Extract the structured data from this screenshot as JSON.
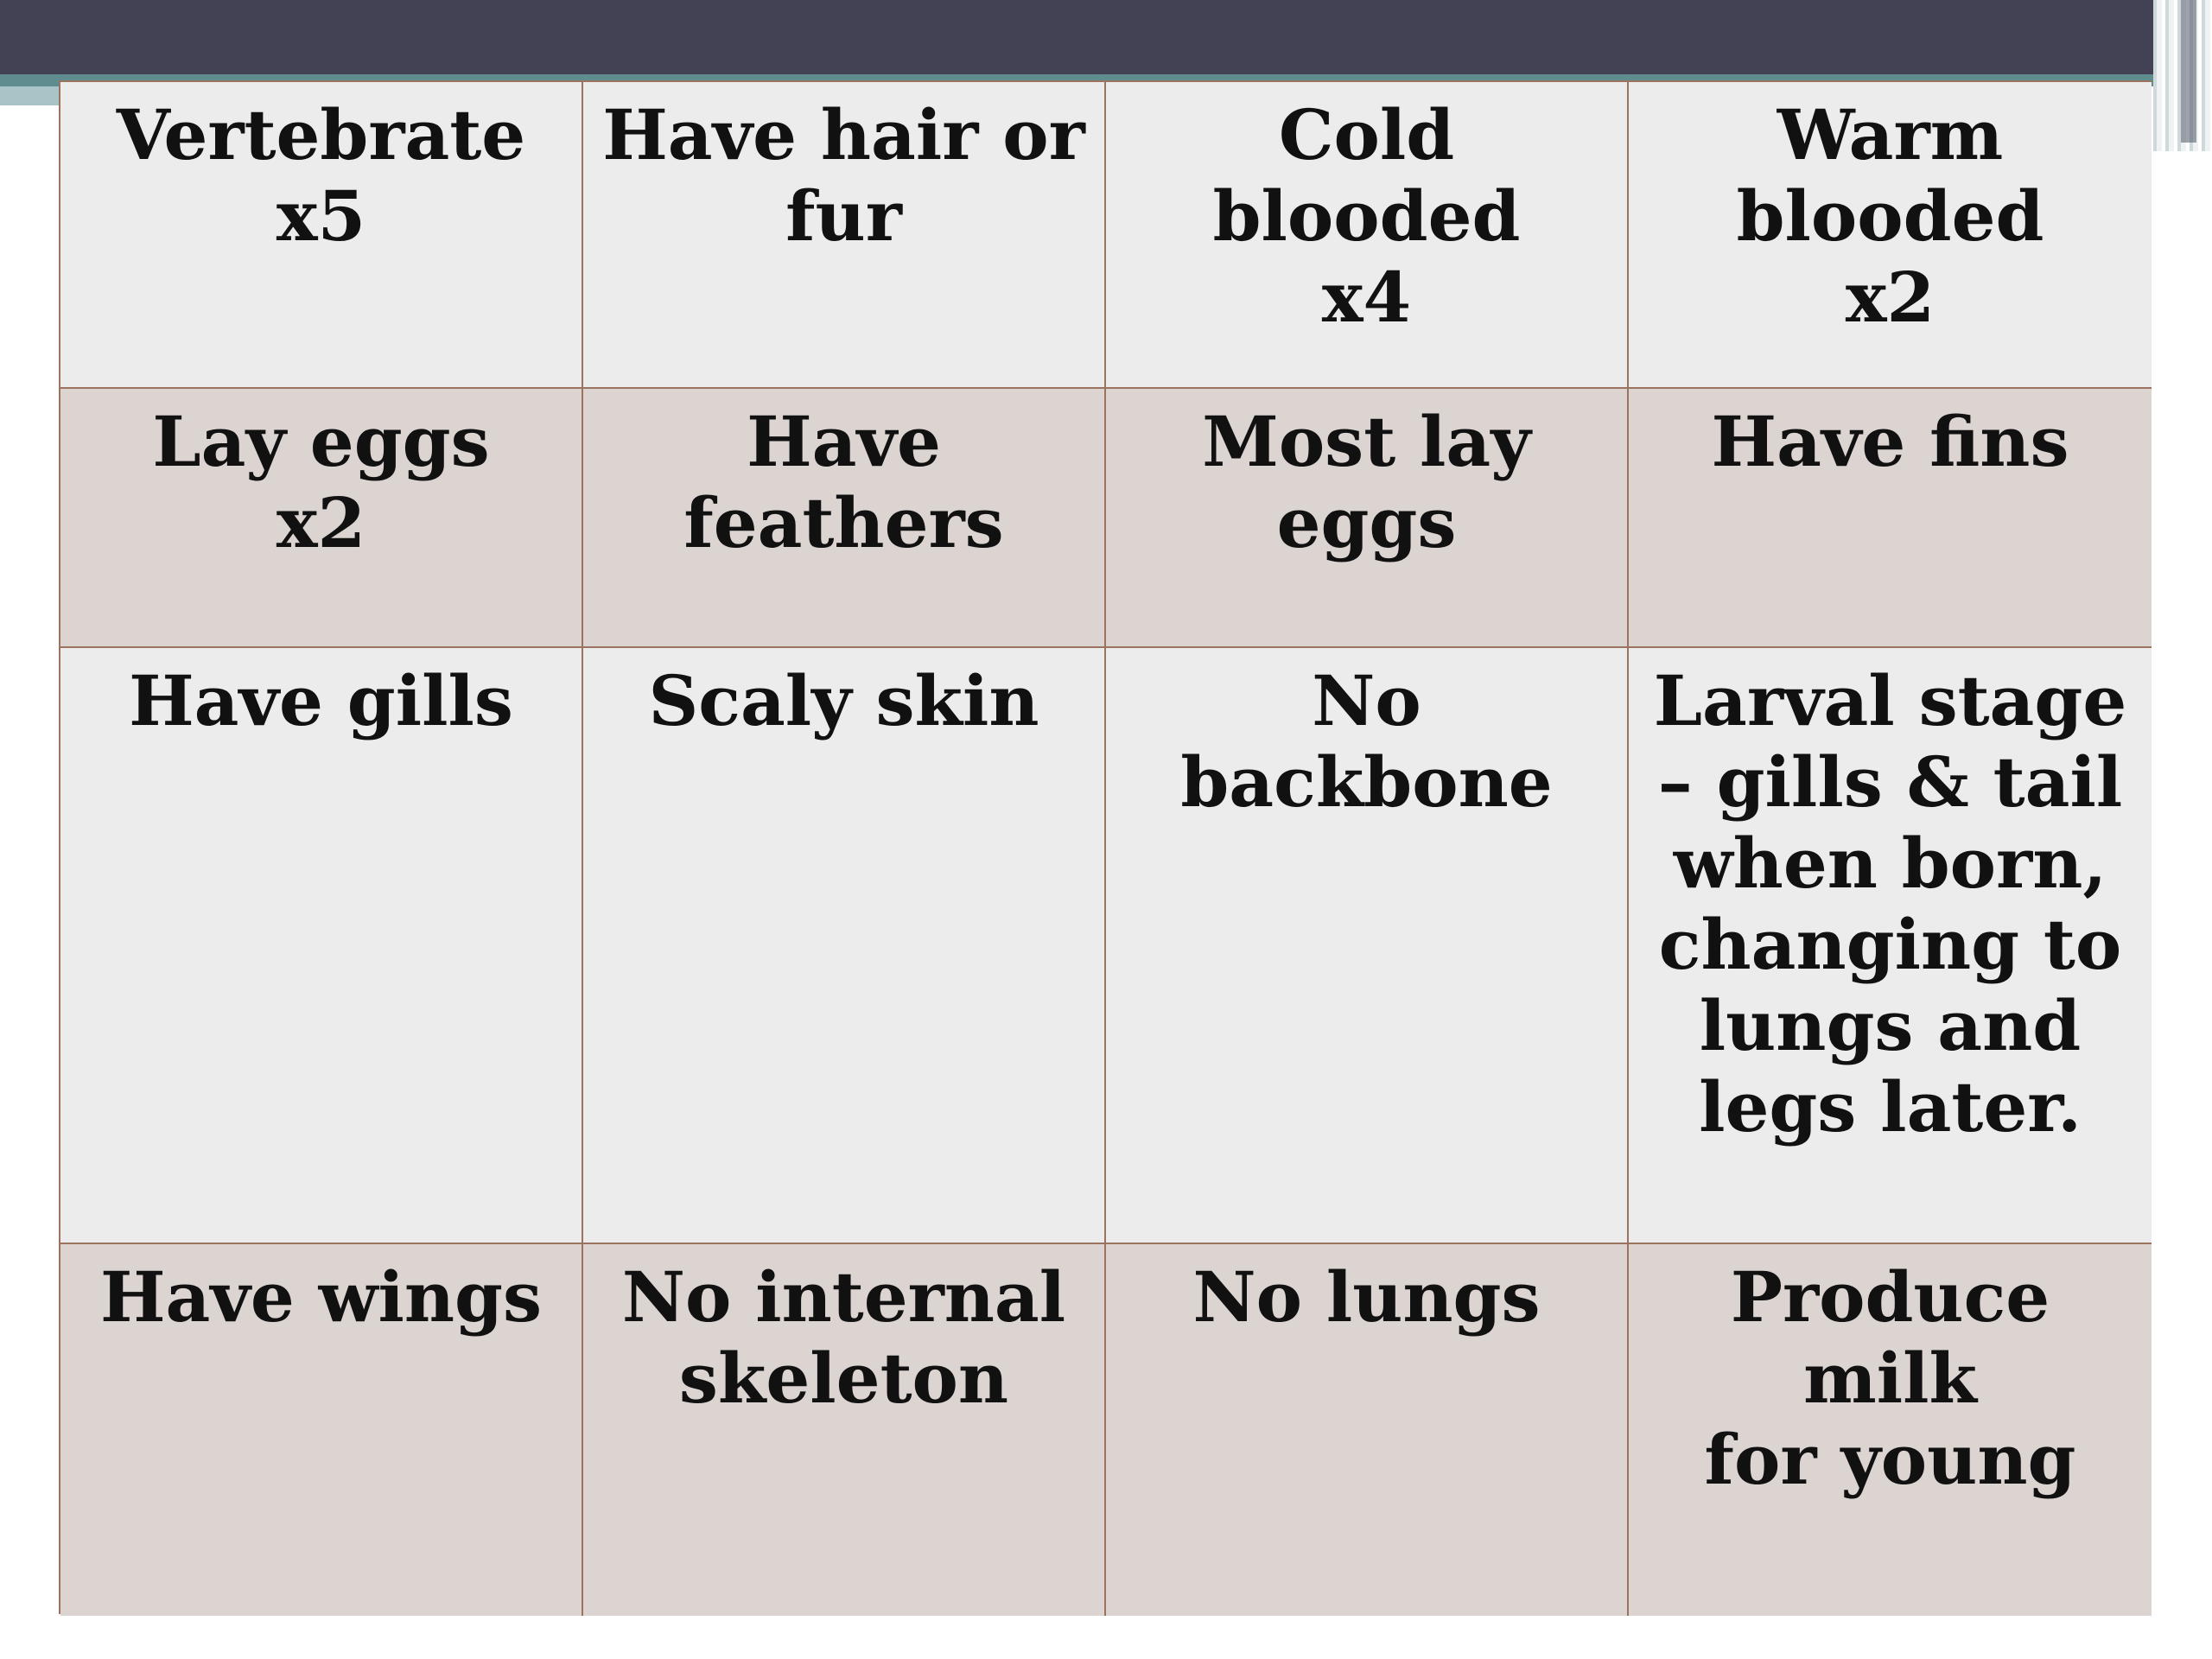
{
  "table": {
    "rows": [
      {
        "cells": [
          "Vertebrate\nx5",
          "Have hair or\nfur",
          "Cold blooded\nx4",
          "Warm\nblooded\nx2"
        ]
      },
      {
        "cells": [
          "Lay eggs\nx2",
          "Have\nfeathers",
          "Most lay eggs",
          "Have fins"
        ]
      },
      {
        "cells": [
          "Have gills",
          "Scaly skin",
          "No backbone",
          "Larval stage\n– gills & tail\nwhen born,\nchanging to\nlungs and\nlegs later."
        ]
      },
      {
        "cells": [
          "Have wings",
          "No internal\nskeleton",
          "No lungs",
          "Produce milk\nfor young"
        ]
      }
    ]
  },
  "colors": {
    "top_bar": "#424254",
    "accent": "#5f8c8e",
    "grid_border": "#9b735f",
    "row_light": "#ececec",
    "row_shaded": "#dcd4d1"
  }
}
